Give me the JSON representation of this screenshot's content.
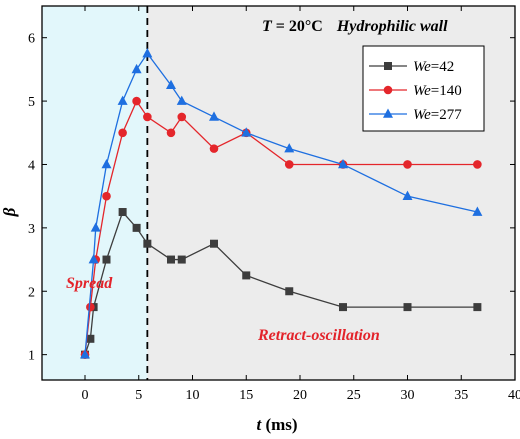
{
  "chart_data": {
    "type": "line",
    "title_parts": {
      "variable": "T",
      "condition": " = 20°C",
      "wall": "Hydrophilic wall"
    },
    "xlabel_var": "t",
    "xlabel_unit": " (ms)",
    "ylabel": "β",
    "xlim": [
      -4,
      40
    ],
    "ylim": [
      0.6,
      6.5
    ],
    "xticks": [
      0,
      5,
      10,
      15,
      20,
      25,
      30,
      35,
      40
    ],
    "yticks": [
      1,
      2,
      3,
      4,
      5,
      6
    ],
    "grid": false,
    "legend_position": "top-right",
    "divider_x": 5.8,
    "regions": [
      {
        "label": "Spread",
        "x_from": -4,
        "x_to": 5.8,
        "color": "#e2f7fb"
      },
      {
        "label": "Retract-oscillation",
        "x_from": 5.8,
        "x_to": 40,
        "color": "#ececec"
      }
    ],
    "series": [
      {
        "name_var": "We",
        "name_val": "=42",
        "color": "#3d3d3d",
        "marker": "square",
        "x": [
          0,
          0.5,
          0.8,
          2,
          3.5,
          4.8,
          5.8,
          8,
          9,
          12,
          15,
          19,
          24,
          30,
          36.5
        ],
        "y": [
          1,
          1.25,
          1.75,
          2.5,
          3.25,
          3.0,
          2.75,
          2.5,
          2.5,
          2.75,
          2.25,
          2.0,
          1.75,
          1.75,
          1.75
        ]
      },
      {
        "name_var": "We",
        "name_val": "=140",
        "color": "#e4262b",
        "marker": "circle",
        "x": [
          0,
          0.5,
          1,
          2,
          3.5,
          4.8,
          5.8,
          8,
          9,
          12,
          15,
          19,
          24,
          30,
          36.5
        ],
        "y": [
          1,
          1.75,
          2.5,
          3.5,
          4.5,
          5.0,
          4.75,
          4.5,
          4.75,
          4.25,
          4.5,
          4.0,
          4.0,
          4.0,
          4.0
        ]
      },
      {
        "name_var": "We",
        "name_val": "=277",
        "color": "#1e6fe0",
        "marker": "triangle",
        "x": [
          0,
          0.8,
          1,
          2,
          3.5,
          4.8,
          5.8,
          8,
          9,
          12,
          15,
          19,
          24,
          30,
          36.5
        ],
        "y": [
          1,
          2.5,
          3.0,
          4.0,
          5.0,
          5.5,
          5.75,
          5.25,
          5.0,
          4.75,
          4.5,
          4.25,
          4.0,
          3.5,
          3.25
        ]
      }
    ]
  }
}
